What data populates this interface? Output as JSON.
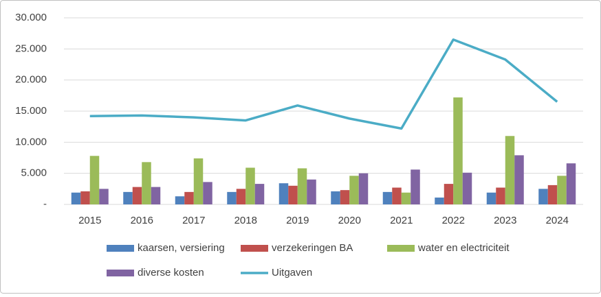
{
  "chart_data": {
    "type": "bar",
    "categories": [
      "2015",
      "2016",
      "2017",
      "2018",
      "2019",
      "2020",
      "2021",
      "2022",
      "2023",
      "2024"
    ],
    "series": [
      {
        "name": "kaarsen, versiering",
        "color": "#4f81bd",
        "values": [
          1900,
          2000,
          1300,
          2000,
          3400,
          2100,
          2000,
          1100,
          1900,
          2500
        ]
      },
      {
        "name": "verzekeringen BA",
        "color": "#c0504d",
        "values": [
          2100,
          2800,
          2000,
          2500,
          3000,
          2300,
          2700,
          3300,
          2700,
          3100
        ]
      },
      {
        "name": "water en electriciteit",
        "color": "#9bbb59",
        "values": [
          7800,
          6800,
          7400,
          5900,
          5800,
          4600,
          1900,
          17200,
          11000,
          4600
        ]
      },
      {
        "name": "diverse kosten",
        "color": "#8064a2",
        "values": [
          2500,
          2800,
          3600,
          3300,
          4000,
          5000,
          5600,
          5100,
          7900,
          6600
        ]
      },
      {
        "name": "Uitgaven",
        "color": "#4bacc6",
        "type": "line",
        "values": [
          14200,
          14300,
          14000,
          13500,
          15900,
          13800,
          12200,
          26500,
          23300,
          16500
        ]
      }
    ],
    "ylim": [
      0,
      30000
    ],
    "yticks": [
      {
        "value": 0,
        "label": "-"
      },
      {
        "value": 5000,
        "label": "5.000"
      },
      {
        "value": 10000,
        "label": "10.000"
      },
      {
        "value": 15000,
        "label": "15.000"
      },
      {
        "value": 20000,
        "label": "20.000"
      },
      {
        "value": 25000,
        "label": "25.000"
      },
      {
        "value": 30000,
        "label": "30.000"
      }
    ],
    "grid": true
  }
}
